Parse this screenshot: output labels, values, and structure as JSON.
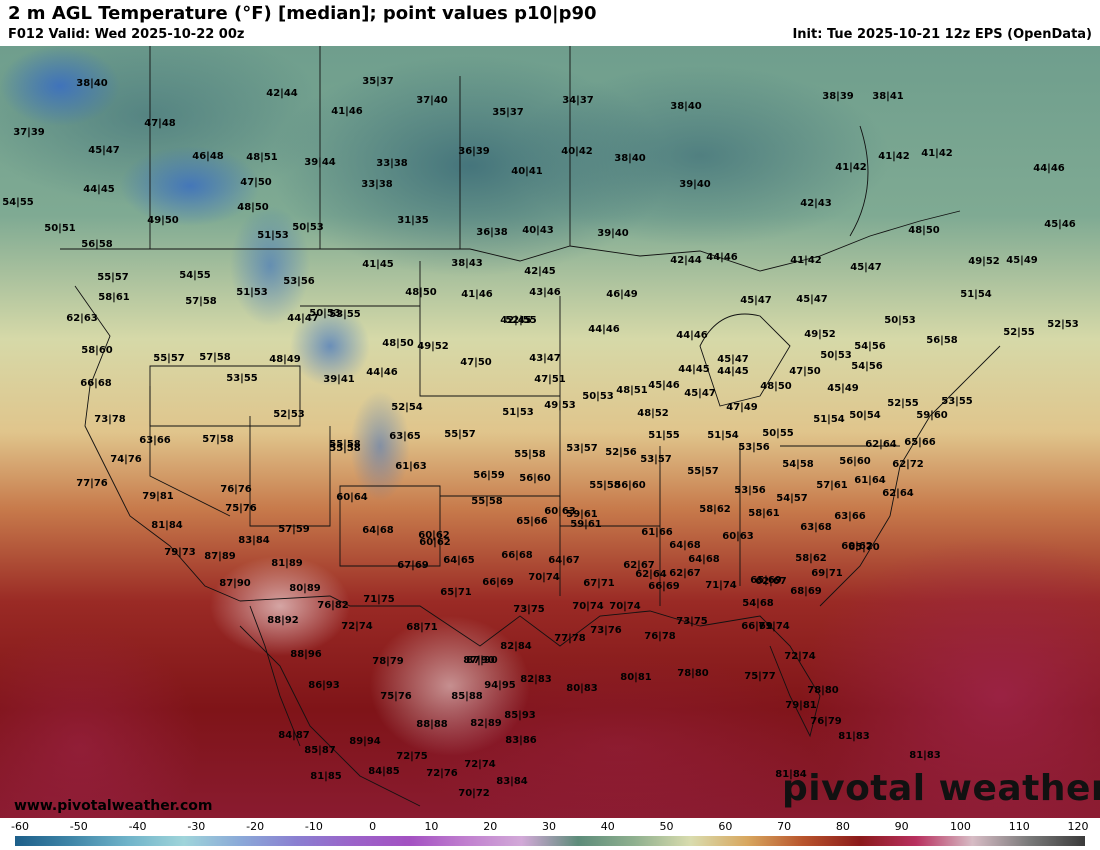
{
  "header": {
    "title": "2 m AGL Temperature (°F) [median]; point values p10|p90",
    "valid": "F012 Valid: Wed 2025-10-22 00z",
    "init": "Init: Tue 2025-10-21 12z EPS (OpenData)"
  },
  "watermark": "pivotal weather",
  "site_url": "www.pivotalweather.com",
  "colorbar": {
    "ticks": [
      "-60",
      "-50",
      "-40",
      "-30",
      "-20",
      "-10",
      "0",
      "10",
      "20",
      "30",
      "40",
      "50",
      "60",
      "70",
      "80",
      "90",
      "100",
      "110",
      "120"
    ],
    "colors": [
      "#1d5f8a",
      "#3f86a8",
      "#6fb3c9",
      "#9fd4da",
      "#8aa9d8",
      "#8a7fd1",
      "#9b63c9",
      "#a351c2",
      "#c07fcf",
      "#d2a9d8",
      "#5d8c7a",
      "#8fb08f",
      "#d9dcae",
      "#d8a75f",
      "#b8542c",
      "#8b1a1a",
      "#b8305f",
      "#d7bcc5",
      "#7a7a7a",
      "#3a3a3a"
    ]
  },
  "map_points": [
    {
      "t": "38|40"
    },
    {
      "t": "42|44"
    },
    {
      "t": "35|37"
    },
    {
      "t": "37|40"
    },
    {
      "t": "35|37"
    },
    {
      "t": "34|37"
    },
    {
      "t": "38|40"
    },
    {
      "t": "38|39"
    },
    {
      "t": "38|41"
    },
    {
      "t": "37|39"
    },
    {
      "t": "47|48"
    },
    {
      "t": "41|46"
    },
    {
      "t": "45|47"
    },
    {
      "t": "46|48"
    },
    {
      "t": "48|51"
    },
    {
      "t": "39|44"
    },
    {
      "t": "33|38"
    },
    {
      "t": "36|39"
    },
    {
      "t": "40|42"
    },
    {
      "t": "38|40"
    },
    {
      "t": "41|42"
    },
    {
      "t": "41|42"
    },
    {
      "t": "41|42"
    },
    {
      "t": "44|46"
    },
    {
      "t": "44|45"
    },
    {
      "t": "47|50"
    },
    {
      "t": "33|38"
    },
    {
      "t": "40|41"
    },
    {
      "t": "39|40"
    },
    {
      "t": "54|55"
    },
    {
      "t": "48|50"
    },
    {
      "t": "42|43"
    },
    {
      "t": "49|50"
    },
    {
      "t": "31|35"
    },
    {
      "t": "50|51"
    },
    {
      "t": "51|53"
    },
    {
      "t": "50|53"
    },
    {
      "t": "36|38"
    },
    {
      "t": "40|43"
    },
    {
      "t": "39|40"
    },
    {
      "t": "48|50"
    },
    {
      "t": "45|46"
    },
    {
      "t": "56|58"
    },
    {
      "t": "42|44"
    },
    {
      "t": "44|46"
    },
    {
      "t": "41|42"
    },
    {
      "t": "55|57"
    },
    {
      "t": "54|55"
    },
    {
      "t": "41|45"
    },
    {
      "t": "38|43"
    },
    {
      "t": "42|45"
    },
    {
      "t": "45|47"
    },
    {
      "t": "49|52"
    },
    {
      "t": "45|49"
    },
    {
      "t": "53|56"
    },
    {
      "t": "51|53"
    },
    {
      "t": "48|50"
    },
    {
      "t": "41|46"
    },
    {
      "t": "43|46"
    },
    {
      "t": "46|49"
    },
    {
      "t": "45|47"
    },
    {
      "t": "45|47"
    },
    {
      "t": "51|54"
    },
    {
      "t": "58|61"
    },
    {
      "t": "57|58"
    },
    {
      "t": "53|55"
    },
    {
      "t": "44|47"
    },
    {
      "t": "42|45"
    },
    {
      "t": "50|53"
    },
    {
      "t": "52|55"
    },
    {
      "t": "52|53"
    },
    {
      "t": "62|63"
    },
    {
      "t": "44|46"
    },
    {
      "t": "44|46"
    },
    {
      "t": "49|52"
    },
    {
      "t": "50|53"
    },
    {
      "t": "58|60"
    },
    {
      "t": "55|57"
    },
    {
      "t": "57|58"
    },
    {
      "t": "48|50"
    },
    {
      "t": "49|52"
    },
    {
      "t": "54|56"
    },
    {
      "t": "56|58"
    },
    {
      "t": "52|55"
    },
    {
      "t": "48|49"
    },
    {
      "t": "47|50"
    },
    {
      "t": "43|47"
    },
    {
      "t": "45|47"
    },
    {
      "t": "50|53"
    },
    {
      "t": "54|56"
    },
    {
      "t": "66|68"
    },
    {
      "t": "53|55"
    },
    {
      "t": "39|41"
    },
    {
      "t": "44|46"
    },
    {
      "t": "47|51"
    },
    {
      "t": "44|45"
    },
    {
      "t": "44|45"
    },
    {
      "t": "48|50"
    },
    {
      "t": "47|50"
    },
    {
      "t": "55|58"
    },
    {
      "t": "53|56"
    },
    {
      "t": "50|53"
    },
    {
      "t": "48|51"
    },
    {
      "t": "45|46"
    },
    {
      "t": "45|47"
    },
    {
      "t": "45|49"
    },
    {
      "t": "52|55"
    },
    {
      "t": "53|55"
    },
    {
      "t": "52|53"
    },
    {
      "t": "52|54"
    },
    {
      "t": "51|53"
    },
    {
      "t": "49|53"
    },
    {
      "t": "48|52"
    },
    {
      "t": "47|49"
    },
    {
      "t": "51|54"
    },
    {
      "t": "50|54"
    },
    {
      "t": "59|60"
    },
    {
      "t": "73|78"
    },
    {
      "t": "63|66"
    },
    {
      "t": "57|58"
    },
    {
      "t": "63|65"
    },
    {
      "t": "55|57"
    },
    {
      "t": "51|55"
    },
    {
      "t": "51|54"
    },
    {
      "t": "50|55"
    },
    {
      "t": "62|64"
    },
    {
      "t": "65|66"
    },
    {
      "t": "55|58"
    },
    {
      "t": "55|58"
    },
    {
      "t": "53|57"
    },
    {
      "t": "52|56"
    },
    {
      "t": "53|57"
    },
    {
      "t": "53|56"
    },
    {
      "t": "74|76"
    },
    {
      "t": "61|63"
    },
    {
      "t": "56|59"
    },
    {
      "t": "56|60"
    },
    {
      "t": "55|57"
    },
    {
      "t": "55|58"
    },
    {
      "t": "54|58"
    },
    {
      "t": "56|60"
    },
    {
      "t": "62|72"
    },
    {
      "t": "77|76"
    },
    {
      "t": "79|81"
    },
    {
      "t": "76|76"
    },
    {
      "t": "60|64"
    },
    {
      "t": "55|58"
    },
    {
      "t": "56|60"
    },
    {
      "t": "57|61"
    },
    {
      "t": "61|64"
    },
    {
      "t": "62|64"
    },
    {
      "t": "75|76"
    },
    {
      "t": "54|57"
    },
    {
      "t": "58|62"
    },
    {
      "t": "58|61"
    },
    {
      "t": "60|63"
    },
    {
      "t": "65|66"
    },
    {
      "t": "63|66"
    },
    {
      "t": "81|84"
    },
    {
      "t": "57|59"
    },
    {
      "t": "64|68"
    },
    {
      "t": "60|62"
    },
    {
      "t": "59|61"
    },
    {
      "t": "61|66"
    },
    {
      "t": "63|68"
    },
    {
      "t": "59|61"
    },
    {
      "t": "83|84"
    },
    {
      "t": "60|62"
    },
    {
      "t": "64|68"
    },
    {
      "t": "60|63"
    },
    {
      "t": "58|62"
    },
    {
      "t": "65|70"
    },
    {
      "t": "60|62"
    },
    {
      "t": "79|73"
    },
    {
      "t": "87|89"
    },
    {
      "t": "64|65"
    },
    {
      "t": "66|68"
    },
    {
      "t": "64|67"
    },
    {
      "t": "62|64"
    },
    {
      "t": "64|68"
    },
    {
      "t": "81|89"
    },
    {
      "t": "67|69"
    },
    {
      "t": "70|74"
    },
    {
      "t": "62|67"
    },
    {
      "t": "62|67"
    },
    {
      "t": "62|67"
    },
    {
      "t": "69|71"
    },
    {
      "t": "87|90"
    },
    {
      "t": "80|89"
    },
    {
      "t": "65|71"
    },
    {
      "t": "66|69"
    },
    {
      "t": "67|71"
    },
    {
      "t": "66|69"
    },
    {
      "t": "71|74"
    },
    {
      "t": "65|69"
    },
    {
      "t": "68|69"
    },
    {
      "t": "76|82"
    },
    {
      "t": "71|75"
    },
    {
      "t": "73|75"
    },
    {
      "t": "70|74"
    },
    {
      "t": "70|74"
    },
    {
      "t": "54|68"
    },
    {
      "t": "88|92"
    },
    {
      "t": "72|74"
    },
    {
      "t": "68|71"
    },
    {
      "t": "77|78"
    },
    {
      "t": "73|76"
    },
    {
      "t": "76|78"
    },
    {
      "t": "73|75"
    },
    {
      "t": "66|69"
    },
    {
      "t": "71|74"
    },
    {
      "t": "82|84"
    },
    {
      "t": "88|96"
    },
    {
      "t": "78|79"
    },
    {
      "t": "87|90"
    },
    {
      "t": "72|74"
    },
    {
      "t": "86|93"
    },
    {
      "t": "75|76"
    },
    {
      "t": "85|88"
    },
    {
      "t": "94|95"
    },
    {
      "t": "82|83"
    },
    {
      "t": "80|83"
    },
    {
      "t": "80|81"
    },
    {
      "t": "78|80"
    },
    {
      "t": "75|77"
    },
    {
      "t": "78|80"
    },
    {
      "t": "87|90"
    },
    {
      "t": "88|88"
    },
    {
      "t": "82|89"
    },
    {
      "t": "85|93"
    },
    {
      "t": "79|81"
    },
    {
      "t": "76|79"
    },
    {
      "t": "84|87"
    },
    {
      "t": "85|87"
    },
    {
      "t": "89|94"
    },
    {
      "t": "83|86"
    },
    {
      "t": "81|83"
    },
    {
      "t": "81|83"
    },
    {
      "t": "72|75"
    },
    {
      "t": "72|74"
    },
    {
      "t": "81|85"
    },
    {
      "t": "84|85"
    },
    {
      "t": "72|76"
    },
    {
      "t": "83|84"
    },
    {
      "t": "81|84"
    },
    {
      "t": "70|72"
    }
  ]
}
